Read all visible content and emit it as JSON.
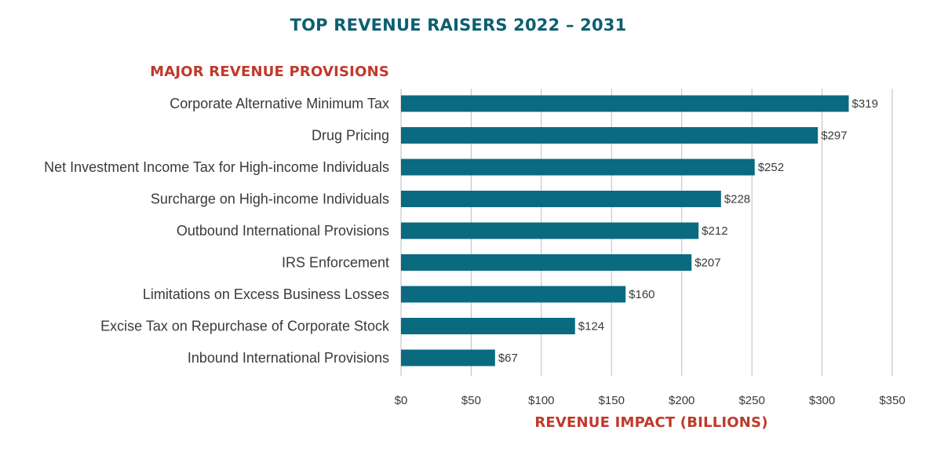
{
  "colors": {
    "title": "#0d5f70",
    "accent_red": "#c0392b",
    "bar": "#0a6a80",
    "grid": "#bdbdbd",
    "text": "#3a3a3a"
  },
  "chart_data": {
    "type": "bar",
    "orientation": "horizontal",
    "title": "TOP REVENUE RAISERS 2022 – 2031",
    "category_heading": "MAJOR REVENUE PROVISIONS",
    "xlabel": "REVENUE IMPACT (BILLIONS)",
    "ylabel": "",
    "categories": [
      "Corporate Alternative Minimum Tax",
      "Drug Pricing",
      "Net Investment Income Tax for High-income Individuals",
      "Surcharge on High-income Individuals",
      "Outbound International Provisions",
      "IRS Enforcement",
      "Limitations on Excess Business Losses",
      "Excise Tax on Repurchase of Corporate Stock",
      "Inbound International Provisions"
    ],
    "values": [
      319,
      297,
      252,
      228,
      212,
      207,
      160,
      124,
      67
    ],
    "data_labels": [
      "$319",
      "$297",
      "$252",
      "$228",
      "$212",
      "$207",
      "$160",
      "$124",
      "$67"
    ],
    "xlim": [
      0,
      350
    ],
    "xticks": [
      0,
      50,
      100,
      150,
      200,
      250,
      300,
      350
    ],
    "xtick_labels": [
      "$0",
      "$50",
      "$100",
      "$150",
      "$200",
      "$250",
      "$300",
      "$350"
    ],
    "grid": "vertical",
    "legend": "none"
  }
}
